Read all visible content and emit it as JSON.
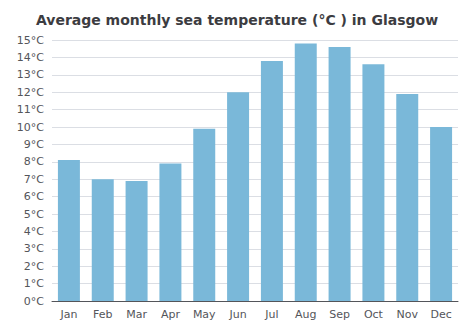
{
  "chart_data": {
    "type": "bar",
    "title": "Average monthly sea temperature (°C ) in Glasgow",
    "categories": [
      "Jan",
      "Feb",
      "Mar",
      "Apr",
      "May",
      "Jun",
      "Jul",
      "Aug",
      "Sep",
      "Oct",
      "Nov",
      "Dec"
    ],
    "values": [
      8.1,
      7.0,
      6.9,
      7.9,
      9.9,
      12.0,
      13.8,
      14.8,
      14.6,
      13.6,
      11.9,
      10.0
    ],
    "color": "#7ab8d9",
    "ylim": [
      0,
      15
    ],
    "yticks": [
      {
        "value": 0,
        "label": "0°C"
      },
      {
        "value": 1,
        "label": "1°C"
      },
      {
        "value": 2,
        "label": "2°C"
      },
      {
        "value": 3,
        "label": "3°C"
      },
      {
        "value": 4,
        "label": "4°C"
      },
      {
        "value": 5,
        "label": "5°C"
      },
      {
        "value": 6,
        "label": "6°C"
      },
      {
        "value": 7,
        "label": "7°C"
      },
      {
        "value": 8,
        "label": "8°C"
      },
      {
        "value": 9,
        "label": "9°C"
      },
      {
        "value": 10,
        "label": "10°C"
      },
      {
        "value": 11,
        "label": "11°C"
      },
      {
        "value": 12,
        "label": "12°C"
      },
      {
        "value": 13,
        "label": "13°C"
      },
      {
        "value": 14,
        "label": "14°C"
      },
      {
        "value": 15,
        "label": "15°C"
      }
    ],
    "grid": true
  }
}
